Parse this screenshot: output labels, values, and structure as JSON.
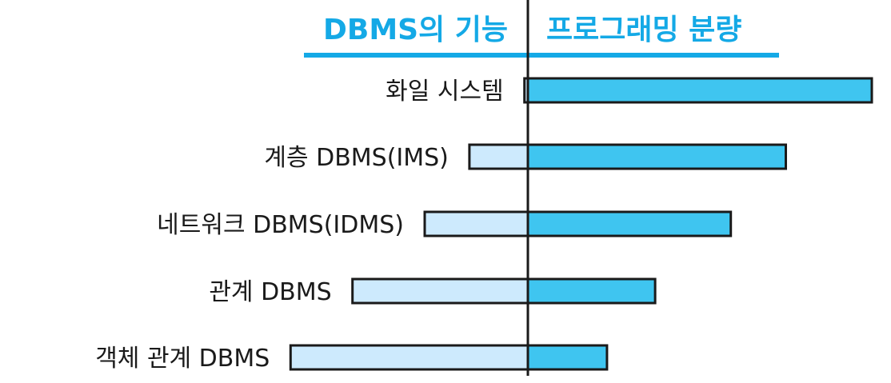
{
  "chart_data": {
    "type": "bar",
    "left_header": "DBMS의 기능",
    "right_header": "프로그래밍 분량",
    "categories": [
      "화일 시스템",
      "계층 DBMS(IMS)",
      "네트워크 DBMS(IDMS)",
      "관계 DBMS",
      "객체 관계 DBMS"
    ],
    "series": [
      {
        "name": "DBMS의 기능",
        "values": [
          1,
          17,
          30,
          51,
          69
        ]
      },
      {
        "name": "프로그래밍 분량",
        "values": [
          100,
          75,
          59,
          37,
          23
        ]
      }
    ],
    "colors": {
      "header": "#14a9e6",
      "left_bar": "#cdeafd",
      "right_bar": "#3fc5f0",
      "outline": "#1a1a1a"
    }
  }
}
